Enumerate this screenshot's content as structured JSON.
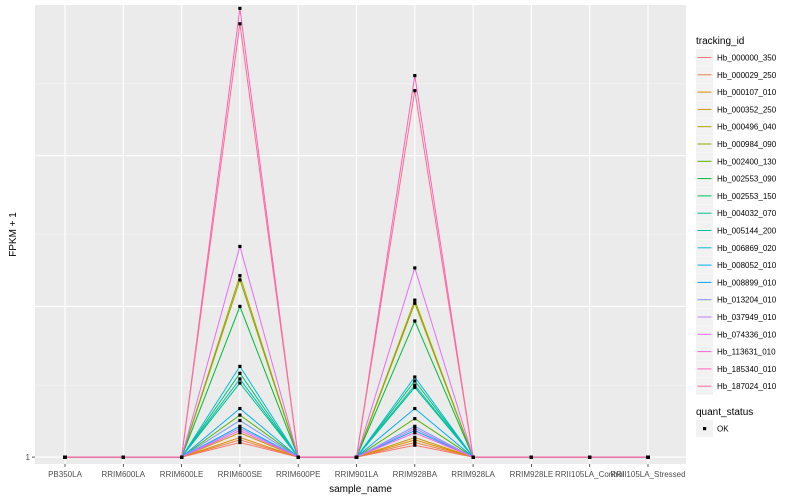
{
  "chart_data": {
    "type": "line",
    "xlabel": "sample_name",
    "ylabel": "FPKM + 1",
    "y_tick_labels": [
      "1"
    ],
    "categories": [
      "PB350LA",
      "RRIM600LA",
      "RRIM600LE",
      "RRIM600SE",
      "RRIM600PE",
      "RRIM901LA",
      "RRIM928BA",
      "RRIM928LA",
      "RRIM928LE",
      "RRII105LA_Control",
      "RRII105LA_Stressed"
    ],
    "ylim": [
      0.9,
      1000
    ],
    "y_scale": "log",
    "grid": true,
    "background": "#ebebeb",
    "legend_placement": "right",
    "legends": [
      {
        "title": "tracking_id",
        "kind": "line"
      },
      {
        "title": "quant_status",
        "kind": "point",
        "entries": [
          "OK"
        ]
      }
    ],
    "series": [
      {
        "name": "Hb_000000_350",
        "color": "#F8766D",
        "values": [
          1,
          1,
          1,
          1.25,
          1,
          1,
          1.2,
          1,
          1,
          1,
          1
        ]
      },
      {
        "name": "Hb_000029_250",
        "color": "#EE8043",
        "values": [
          1,
          1,
          1,
          1.3,
          1,
          1,
          1.25,
          1,
          1,
          1,
          1
        ]
      },
      {
        "name": "Hb_000107_010",
        "color": "#DF8C00",
        "values": [
          1,
          1,
          1,
          1.35,
          1,
          1,
          1.3,
          1,
          1,
          1,
          1
        ]
      },
      {
        "name": "Hb_000352_250",
        "color": "#CA9700",
        "values": [
          1,
          1,
          1,
          1.45,
          1,
          1,
          1.35,
          1,
          1,
          1,
          1
        ]
      },
      {
        "name": "Hb_000496_040",
        "color": "#AFA100",
        "values": [
          1,
          1,
          1,
          16,
          1,
          1,
          11,
          1,
          1,
          1,
          1
        ]
      },
      {
        "name": "Hb_000984_090",
        "color": "#8BAA00",
        "values": [
          1,
          1,
          1,
          15,
          1,
          1,
          10.5,
          1,
          1,
          1,
          1
        ]
      },
      {
        "name": "Hb_002400_130",
        "color": "#53B400",
        "values": [
          1,
          1,
          1,
          1.9,
          1,
          1,
          1.8,
          1,
          1,
          1,
          1
        ]
      },
      {
        "name": "Hb_002553_090",
        "color": "#00BA38",
        "values": [
          1,
          1,
          1,
          10,
          1,
          1,
          8,
          1,
          1,
          1,
          1
        ]
      },
      {
        "name": "Hb_002553_150",
        "color": "#00BE6C",
        "values": [
          1,
          1,
          1,
          3.6,
          1,
          1,
          3.2,
          1,
          1,
          1,
          1
        ]
      },
      {
        "name": "Hb_004032_070",
        "color": "#00C08E",
        "values": [
          1,
          1,
          1,
          3.1,
          1,
          1,
          2.9,
          1,
          1,
          1,
          1
        ]
      },
      {
        "name": "Hb_005144_200",
        "color": "#00C0AB",
        "values": [
          1,
          1,
          1,
          3.3,
          1,
          1,
          3.0,
          1,
          1,
          1,
          1
        ]
      },
      {
        "name": "Hb_006869_020",
        "color": "#00BCD8",
        "values": [
          1,
          1,
          1,
          4.0,
          1,
          1,
          3.4,
          1,
          1,
          1,
          1
        ]
      },
      {
        "name": "Hb_008052_010",
        "color": "#00B0F6",
        "values": [
          1,
          1,
          1,
          2.1,
          1,
          1,
          2.1,
          1,
          1,
          1,
          1
        ]
      },
      {
        "name": "Hb_008899_010",
        "color": "#00A5FF",
        "values": [
          1,
          1,
          1,
          1.6,
          1,
          1,
          1.5,
          1,
          1,
          1,
          1
        ]
      },
      {
        "name": "Hb_013204_010",
        "color": "#7997FF",
        "values": [
          1,
          1,
          1,
          1.75,
          1,
          1,
          1.6,
          1,
          1,
          1,
          1
        ]
      },
      {
        "name": "Hb_037949_010",
        "color": "#B983FF",
        "values": [
          1,
          1,
          1,
          1.55,
          1,
          1,
          1.55,
          1,
          1,
          1,
          1
        ]
      },
      {
        "name": "Hb_074336_010",
        "color": "#E76BF3",
        "values": [
          1,
          1,
          1,
          25,
          1,
          1,
          18,
          1,
          1,
          1,
          1
        ]
      },
      {
        "name": "Hb_113631_010",
        "color": "#F564E3",
        "values": [
          1,
          1,
          1,
          1.5,
          1,
          1,
          1.45,
          1,
          1,
          1,
          1
        ]
      },
      {
        "name": "Hb_185340_010",
        "color": "#FF62BC",
        "values": [
          1,
          1,
          1,
          950,
          1,
          1,
          340,
          1,
          1,
          1,
          1
        ]
      },
      {
        "name": "Hb_187024_010",
        "color": "#FF6C91",
        "values": [
          1,
          1,
          1,
          750,
          1,
          1,
          270,
          1,
          1,
          1,
          1
        ]
      }
    ]
  }
}
